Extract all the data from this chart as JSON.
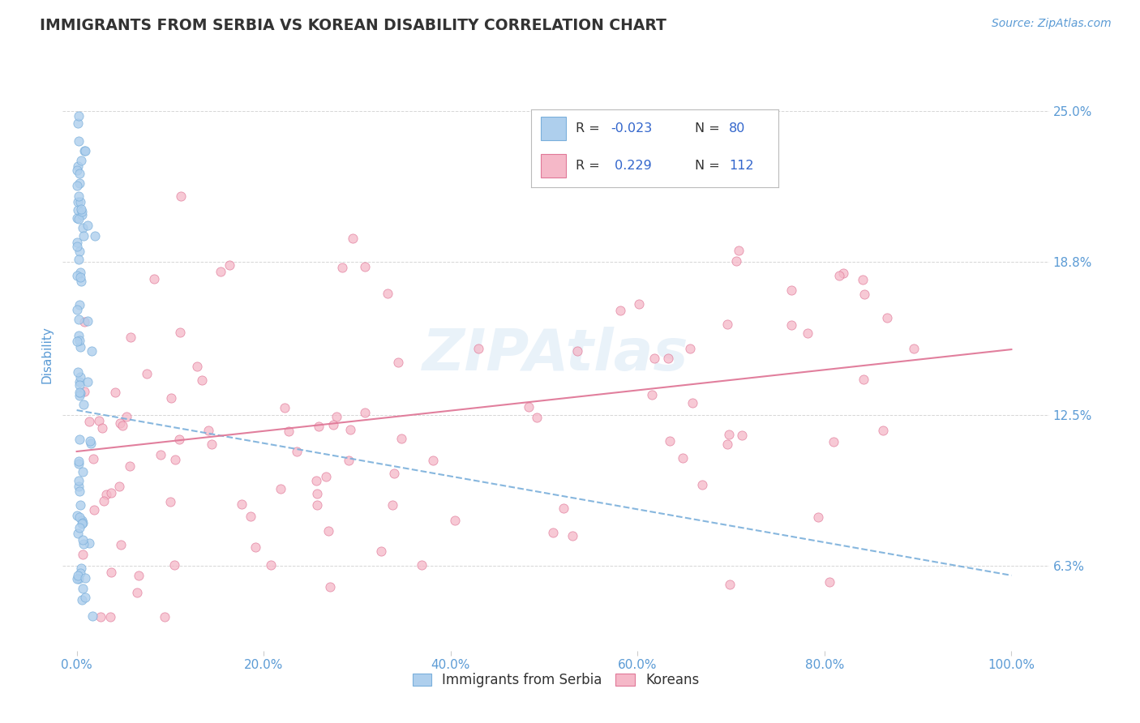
{
  "title": "IMMIGRANTS FROM SERBIA VS KOREAN DISABILITY CORRELATION CHART",
  "source_text": "Source: ZipAtlas.com",
  "ylabel": "Disability",
  "y_tick_labels": [
    "6.3%",
    "12.5%",
    "18.8%",
    "25.0%"
  ],
  "y_tick_values": [
    0.063,
    0.125,
    0.188,
    0.25
  ],
  "x_tick_labels": [
    "0.0%",
    "20.0%",
    "40.0%",
    "60.0%",
    "80.0%",
    "100.0%"
  ],
  "x_tick_values": [
    0.0,
    0.2,
    0.4,
    0.6,
    0.8,
    1.0
  ],
  "xlim": [
    -0.015,
    1.04
  ],
  "ylim": [
    0.028,
    0.272
  ],
  "series1_color": "#aecfed",
  "series1_edge": "#7aafdb",
  "series2_color": "#f5b8c8",
  "series2_edge": "#e07898",
  "line1_color": "#7aafdb",
  "line2_color": "#e07898",
  "R1": -0.023,
  "N1": 80,
  "R2": 0.229,
  "N2": 112,
  "legend_label1": "Immigrants from Serbia",
  "legend_label2": "Koreans",
  "watermark": "ZIPAtlas",
  "background_color": "#ffffff",
  "grid_color": "#cccccc",
  "title_color": "#333333",
  "axis_label_color": "#5b9bd5",
  "trend1_x0": 0.0,
  "trend1_x1": 1.0,
  "trend1_y0": 0.127,
  "trend1_y1": 0.059,
  "trend2_x0": 0.0,
  "trend2_x1": 1.0,
  "trend2_y0": 0.11,
  "trend2_y1": 0.152
}
